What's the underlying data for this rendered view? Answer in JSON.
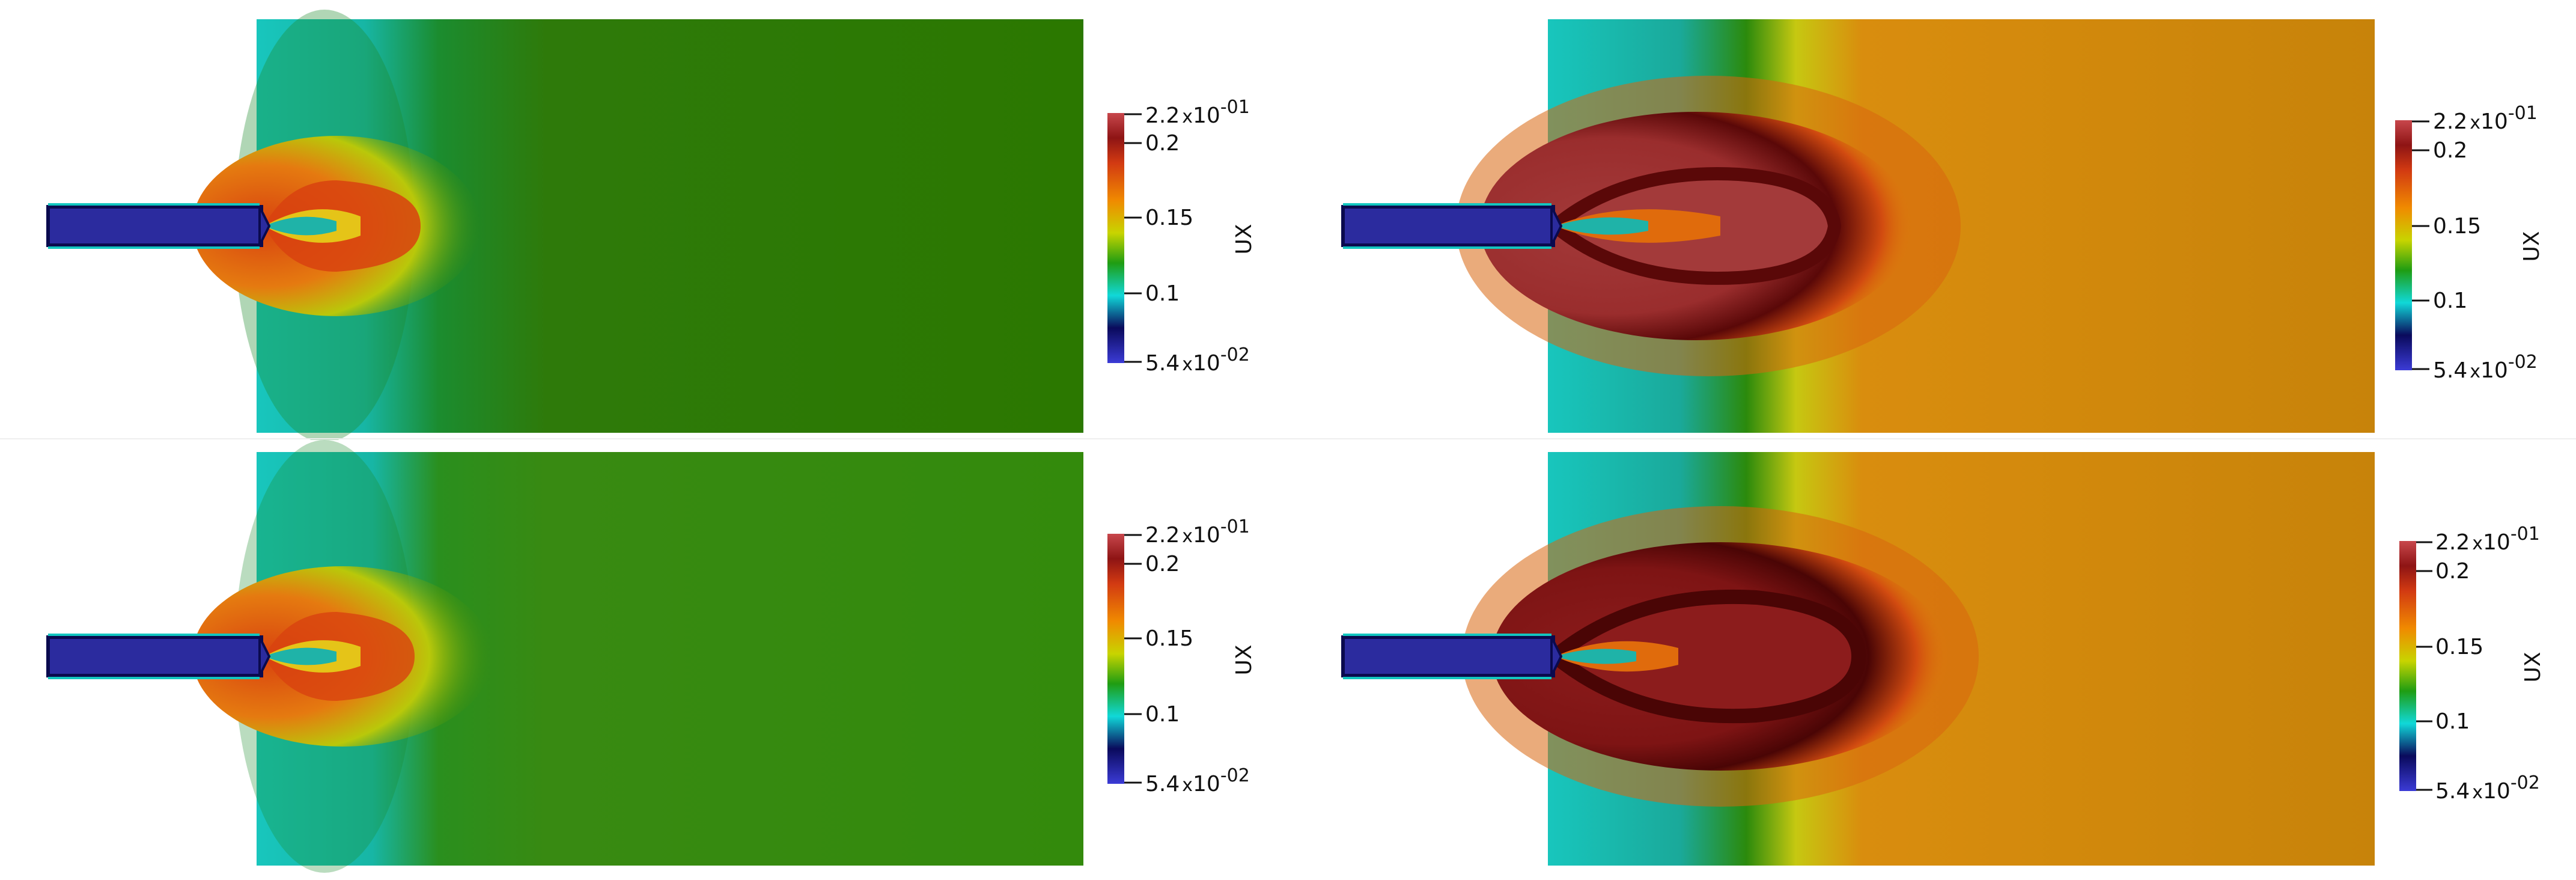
{
  "colorbar": {
    "field": "UX",
    "max": {
      "mantissa": "2.2",
      "times": "x",
      "base": "10",
      "exponent": "-01"
    },
    "min": {
      "mantissa": "5.4",
      "times": "x",
      "base": "10",
      "exponent": "-02"
    },
    "ticks": [
      "0.2",
      "0.15",
      "0.1"
    ],
    "tick_values": [
      0.2,
      0.15,
      0.1
    ],
    "range": [
      0.054,
      0.22
    ],
    "colors": [
      "#3b3bd6",
      "#0a0a5c",
      "#10d8d8",
      "#1f9d12",
      "#c8d400",
      "#f08a00",
      "#d23a12",
      "#6e0a0a",
      "#c8474c"
    ]
  },
  "colors": {
    "inlet": "#2b2b9e",
    "inlet_edge": "#0a0a4e",
    "cyan": "#16c8c0",
    "green": "#2e7d0a",
    "orange": "#c7830a",
    "red": "#a23838",
    "darkred": "#6a0c0c"
  }
}
